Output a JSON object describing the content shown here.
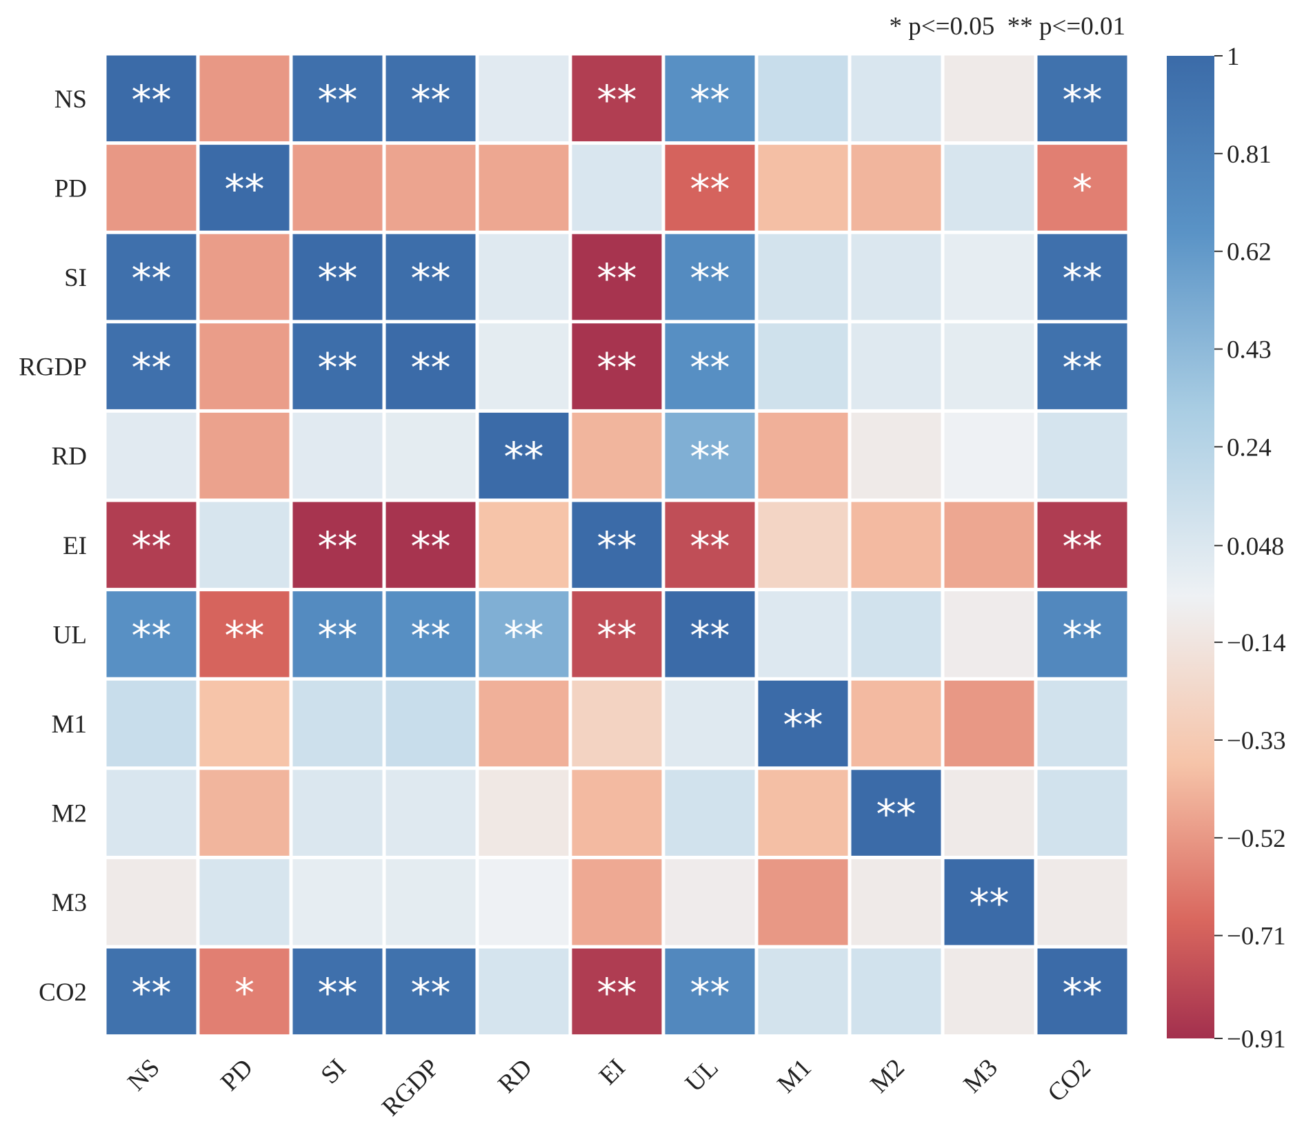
{
  "chart_data": {
    "type": "heatmap",
    "title": "",
    "legend_note": "* p<=0.05  ** p<=0.01",
    "row_labels": [
      "NS",
      "PD",
      "SI",
      "RGDP",
      "RD",
      "EI",
      "UL",
      "M1",
      "M2",
      "M3",
      "CO2"
    ],
    "col_labels": [
      "NS",
      "PD",
      "SI",
      "RGDP",
      "RD",
      "EI",
      "UL",
      "M1",
      "M2",
      "M3",
      "CO2"
    ],
    "values": [
      [
        1.0,
        -0.32,
        0.96,
        0.96,
        0.16,
        -0.81,
        0.72,
        0.28,
        0.2,
        0.06,
        0.95
      ],
      [
        -0.32,
        1.0,
        -0.3,
        -0.27,
        -0.26,
        0.2,
        -0.55,
        -0.16,
        -0.2,
        0.21,
        -0.42
      ],
      [
        0.96,
        -0.3,
        1.0,
        0.98,
        0.17,
        -0.88,
        0.76,
        0.23,
        0.19,
        0.14,
        0.96
      ],
      [
        0.96,
        -0.3,
        0.98,
        1.0,
        0.15,
        -0.88,
        0.73,
        0.25,
        0.17,
        0.15,
        0.95
      ],
      [
        0.16,
        -0.28,
        0.16,
        0.15,
        1.0,
        -0.2,
        0.57,
        -0.22,
        0.06,
        0.1,
        0.22
      ],
      [
        -0.81,
        0.21,
        -0.88,
        -0.88,
        -0.14,
        1.0,
        -0.7,
        -0.05,
        -0.18,
        -0.26,
        -0.82
      ],
      [
        0.72,
        -0.54,
        0.76,
        0.73,
        0.57,
        -0.7,
        1.0,
        0.18,
        0.24,
        0.07,
        0.78
      ],
      [
        0.28,
        -0.14,
        0.26,
        0.28,
        -0.22,
        -0.06,
        0.17,
        1.0,
        -0.18,
        -0.32,
        0.24
      ],
      [
        0.2,
        -0.2,
        0.19,
        0.17,
        0.05,
        -0.18,
        0.24,
        -0.16,
        1.0,
        0.06,
        0.24
      ],
      [
        0.06,
        0.21,
        0.14,
        0.15,
        0.1,
        -0.25,
        0.07,
        -0.32,
        0.06,
        1.0,
        0.06
      ],
      [
        0.95,
        -0.42,
        0.96,
        0.95,
        0.22,
        -0.82,
        0.78,
        0.23,
        0.24,
        0.06,
        1.0
      ]
    ],
    "significance": [
      [
        "**",
        "",
        "**",
        "**",
        "",
        "**",
        "**",
        "",
        "",
        "",
        "**"
      ],
      [
        "",
        "**",
        "",
        "",
        "",
        "",
        "**",
        "",
        "",
        "",
        "*"
      ],
      [
        "**",
        "",
        "**",
        "**",
        "",
        "**",
        "**",
        "",
        "",
        "",
        "**"
      ],
      [
        "**",
        "",
        "**",
        "**",
        "",
        "**",
        "**",
        "",
        "",
        "",
        "**"
      ],
      [
        "",
        "",
        "",
        "",
        "**",
        "",
        "**",
        "",
        "",
        "",
        ""
      ],
      [
        "**",
        "",
        "**",
        "**",
        "",
        "**",
        "**",
        "",
        "",
        "",
        "**"
      ],
      [
        "**",
        "**",
        "**",
        "**",
        "**",
        "**",
        "**",
        "",
        "",
        "",
        "**"
      ],
      [
        "",
        "",
        "",
        "",
        "",
        "",
        "",
        "**",
        "",
        "",
        ""
      ],
      [
        "",
        "",
        "",
        "",
        "",
        "",
        "",
        "",
        "**",
        "",
        ""
      ],
      [
        "",
        "",
        "",
        "",
        "",
        "",
        "",
        "",
        "",
        "**",
        ""
      ],
      [
        "**",
        "*",
        "**",
        "**",
        "",
        "**",
        "**",
        "",
        "",
        "",
        "**"
      ]
    ],
    "colorbar": {
      "range": [
        -0.91,
        1
      ],
      "ticks": [
        "1",
        "0.81",
        "0.62",
        "0.43",
        "0.24",
        "0.048",
        "−0.14",
        "−0.33",
        "−0.52",
        "−0.71",
        "−0.91"
      ],
      "tick_values": [
        1,
        0.81,
        0.62,
        0.43,
        0.24,
        0.048,
        -0.14,
        -0.33,
        -0.52,
        -0.71,
        -0.91
      ],
      "colors": {
        "max": "#3b6ba8",
        "high": "#5a93c6",
        "mid_high": "#a9cde3",
        "neutral": "#eef1f4",
        "mid_low": "#f6c4a9",
        "low": "#d9675e",
        "min": "#a3304e"
      }
    }
  }
}
